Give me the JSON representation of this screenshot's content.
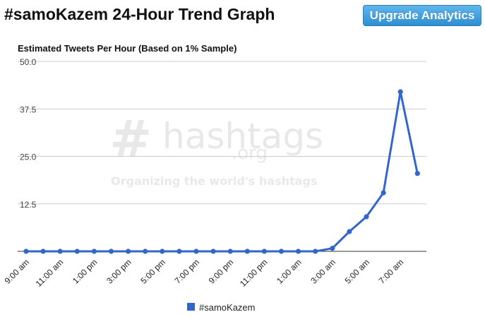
{
  "header": {
    "title": "#samoKazem 24-Hour Trend Graph",
    "upgrade_label": "Upgrade Analytics"
  },
  "watermark": {
    "hash": "#",
    "name": "hashtags",
    "domain": ".org",
    "tagline": "Organizing the world's hashtags"
  },
  "chart_data": {
    "type": "line",
    "title": "Estimated Tweets Per Hour (Based on 1% Sample)",
    "xlabel": "",
    "ylabel": "",
    "ylim": [
      0,
      50
    ],
    "yticks": [
      "50.0",
      "37.5",
      "25.0",
      "12.5"
    ],
    "x_tick_labels": [
      "9:00 am",
      "11:00 am",
      "1:00 pm",
      "3:00 pm",
      "5:00 pm",
      "7:00 pm",
      "9:00 pm",
      "11:00 pm",
      "1:00 am",
      "3:00 am",
      "5:00 am",
      "7:00 am"
    ],
    "grid": true,
    "legend_position": "bottom",
    "series": [
      {
        "name": "#samoKazem",
        "color": "#3366cc",
        "values": [
          0,
          0,
          0,
          0,
          0,
          0,
          0,
          0,
          0,
          0,
          0,
          0,
          0,
          0,
          0,
          0,
          0,
          0,
          0.8,
          5.2,
          9.1,
          15.4,
          42.0,
          20.5
        ]
      }
    ]
  }
}
